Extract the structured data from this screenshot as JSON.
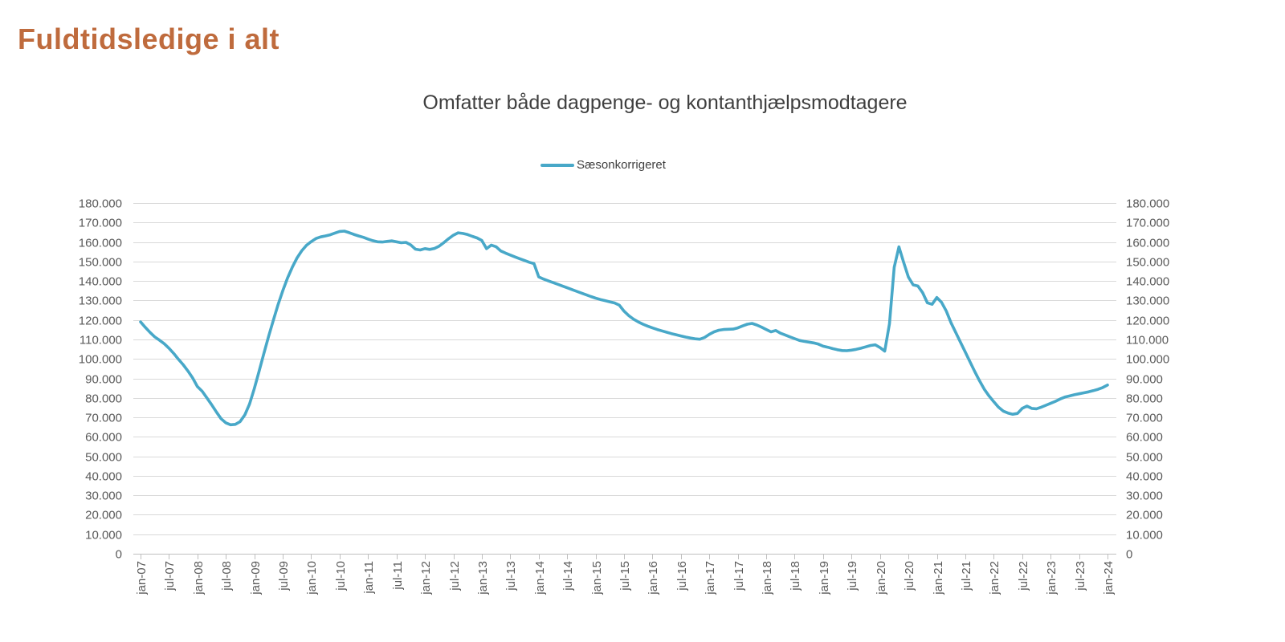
{
  "page": {
    "title": "Fuldtidsledige i alt"
  },
  "chart": {
    "title": "Omfatter både dagpenge- og kontanthjælpsmodtagere",
    "legend": {
      "label": "Sæsonkorrigeret"
    }
  },
  "colors": {
    "title": "#BF6B3D",
    "line": "#48A8C8",
    "axis_text": "#595959",
    "gridline": "#D9D9D9",
    "axis_line": "#BFBFBF",
    "chart_title_text": "#3F3F3F"
  },
  "chart_data": {
    "type": "line",
    "title": "Omfatter både dagpenge- og kontanthjælpsmodtagere",
    "subtitle_of": "Fuldtidsledige i alt",
    "legend_entries": [
      "Sæsonkorrigeret"
    ],
    "legend_position": "top",
    "grid": "horizontal",
    "ylim": [
      0,
      180000
    ],
    "y_gridline_step": 10000,
    "y_tick_labels": [
      "0",
      "10.000",
      "20.000",
      "30.000",
      "40.000",
      "50.000",
      "60.000",
      "70.000",
      "80.000",
      "90.000",
      "100.000",
      "110.000",
      "120.000",
      "130.000",
      "140.000",
      "150.000",
      "160.000",
      "170.000",
      "180.000"
    ],
    "y_axis_sides": [
      "left",
      "right"
    ],
    "x_start": "jan-07",
    "x_end": "jan-24",
    "x_interval": "monthly",
    "x_tick_labels": [
      "jan-07",
      "jul-07",
      "jan-08",
      "jul-08",
      "jan-09",
      "jul-09",
      "jan-10",
      "jul-10",
      "jan-11",
      "jul-11",
      "jan-12",
      "jul-12",
      "jan-13",
      "jul-13",
      "jan-14",
      "jul-14",
      "jan-15",
      "jul-15",
      "jan-16",
      "jul-16",
      "jan-17",
      "jul-17",
      "jan-18",
      "jul-18",
      "jan-19",
      "jul-19",
      "jan-20",
      "jul-20",
      "jan-21",
      "jul-21",
      "jan-22",
      "jul-22",
      "jan-23",
      "jul-23",
      "jan-24"
    ],
    "series": [
      {
        "name": "Sæsonkorrigeret",
        "values": [
          119000,
          116200,
          113600,
          111300,
          109600,
          107800,
          105500,
          102800,
          99800,
          97000,
          93800,
          90200,
          85800,
          83400,
          80000,
          76500,
          72800,
          69300,
          67200,
          66200,
          66400,
          67800,
          71200,
          76800,
          84700,
          93500,
          102700,
          111500,
          119800,
          127800,
          135000,
          141500,
          147000,
          151800,
          155500,
          158300,
          160200,
          161800,
          162600,
          163100,
          163700,
          164600,
          165400,
          165600,
          164800,
          163900,
          163100,
          162400,
          161500,
          160700,
          160100,
          160000,
          160300,
          160600,
          160100,
          159600,
          159800,
          158500,
          156300,
          155900,
          156600,
          156200,
          156700,
          157900,
          159700,
          161700,
          163500,
          164700,
          164400,
          163800,
          162900,
          162100,
          160800,
          156600,
          158400,
          157600,
          155400,
          154300,
          153300,
          152300,
          151400,
          150500,
          149600,
          148900,
          142100,
          141000,
          140100,
          139200,
          138300,
          137400,
          136500,
          135600,
          134700,
          133800,
          132900,
          132000,
          131200,
          130500,
          129900,
          129300,
          128700,
          127600,
          124500,
          122200,
          120400,
          119000,
          117800,
          116800,
          115900,
          115100,
          114400,
          113700,
          113000,
          112400,
          111800,
          111200,
          110700,
          110300,
          110100,
          111000,
          112600,
          113900,
          114700,
          115100,
          115200,
          115300,
          115900,
          116900,
          117800,
          118200,
          117400,
          116300,
          115100,
          113900,
          114600,
          113200,
          112300,
          111300,
          110400,
          109500,
          109000,
          108600,
          108200,
          107600,
          106500,
          106000,
          105300,
          104700,
          104300,
          104200,
          104500,
          104900,
          105500,
          106200,
          106900,
          107200,
          105800,
          104000,
          118000,
          147000,
          157500,
          149500,
          142000,
          138000,
          137400,
          134000,
          128800,
          128000,
          131500,
          129000,
          124500,
          118500,
          113500,
          108500,
          103500,
          98500,
          93500,
          88800,
          84500,
          81000,
          78000,
          75200,
          73200,
          72200,
          71600,
          72000,
          74600,
          75800,
          74600,
          74400,
          75200,
          76200,
          77200,
          78200,
          79400,
          80400,
          81000,
          81600,
          82100,
          82600,
          83100,
          83700,
          84400,
          85300,
          86600
        ]
      }
    ]
  }
}
